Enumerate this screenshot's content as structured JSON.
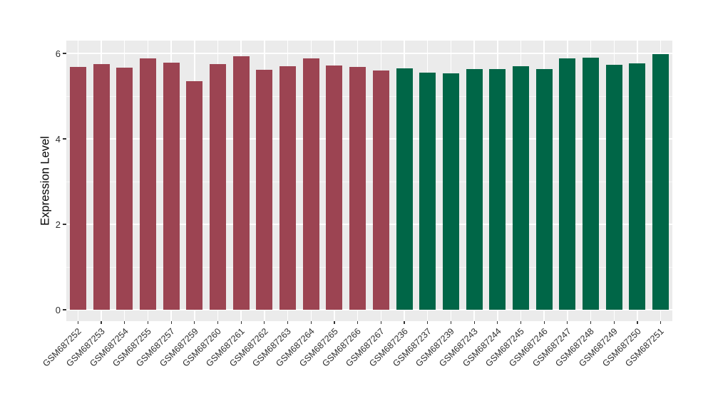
{
  "figure": {
    "background": "#FFFFFF",
    "panel_background": "#EBEBEB",
    "gridline_color": "#FFFFFF",
    "tick_color": "#333333",
    "axis_text_color": "#2E2E2E",
    "axis_title_color": "#000000"
  },
  "chart_data": {
    "type": "bar",
    "title": "",
    "xlabel": "",
    "ylabel": "Expression Level",
    "ylim": [
      0,
      6.3
    ],
    "yticks": [
      0,
      2,
      4,
      6
    ],
    "yticks_minor": [
      1,
      3,
      5
    ],
    "grid": "on",
    "legend_position": "none",
    "groups": [
      {
        "name": "group-1",
        "color": "#9C4452"
      },
      {
        "name": "group-2",
        "color": "#006647"
      }
    ],
    "categories": [
      "GSM687252",
      "GSM687253",
      "GSM687254",
      "GSM687255",
      "GSM687257",
      "GSM687259",
      "GSM687260",
      "GSM687261",
      "GSM687262",
      "GSM687263",
      "GSM687264",
      "GSM687265",
      "GSM687266",
      "GSM687267",
      "GSM687236",
      "GSM687237",
      "GSM687239",
      "GSM687243",
      "GSM687244",
      "GSM687245",
      "GSM687246",
      "GSM687247",
      "GSM687248",
      "GSM687249",
      "GSM687250",
      "GSM687251"
    ],
    "values": [
      5.68,
      5.75,
      5.67,
      5.88,
      5.78,
      5.35,
      5.75,
      5.93,
      5.62,
      5.7,
      5.88,
      5.72,
      5.69,
      5.6,
      5.65,
      5.55,
      5.53,
      5.63,
      5.63,
      5.7,
      5.64,
      5.88,
      5.9,
      5.73,
      5.77,
      5.99
    ],
    "group_index": [
      0,
      0,
      0,
      0,
      0,
      0,
      0,
      0,
      0,
      0,
      0,
      0,
      0,
      0,
      1,
      1,
      1,
      1,
      1,
      1,
      1,
      1,
      1,
      1,
      1,
      1
    ]
  }
}
